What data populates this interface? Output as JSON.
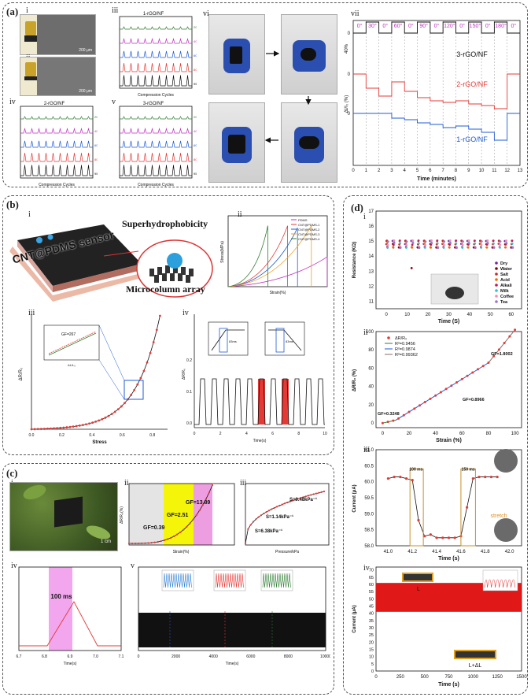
{
  "panels": {
    "a": {
      "label": "(a)",
      "subs": [
        "i",
        "ii",
        "iii",
        "iv",
        "v",
        "vi",
        "vii"
      ],
      "sem_scale": "200 μm",
      "iii_title": "1-rGO/NF",
      "iv_title": "2-rGO/NF",
      "v_title": "3-rGO/NF",
      "xlabel_cycles": "Compression Cycles",
      "legend_pct": [
        "20%",
        "40%",
        "60%",
        "80%",
        "95%"
      ],
      "vii_angles": [
        "0°",
        "30°",
        "0°",
        "60°",
        "0°",
        "90°",
        "0°",
        "120°",
        "0°",
        "150°",
        "0°",
        "180°",
        "0°"
      ],
      "vii_series": [
        "3-rGO/NF",
        "2-rGO/NF",
        "1-rGO/NF"
      ],
      "vii_xlabel": "Time (minutes)",
      "vii_ylabel": "ΔI/I₀ (%)",
      "vii_scale": "40%",
      "vii_xticks": [
        "0",
        "1",
        "2",
        "3",
        "4",
        "5",
        "6",
        "7",
        "8",
        "9",
        "10",
        "11",
        "12",
        "13"
      ]
    },
    "b": {
      "label": "(b)",
      "subs": [
        "i",
        "ii",
        "iii",
        "iv"
      ],
      "banner": "CNT@PDMS sensor",
      "t1": "Superhydrophobicity",
      "t2": "Microcolumn array",
      "ii_legend": [
        "PDMS",
        "CNT@PDMS-1",
        "CNT@PDMS-2",
        "CNT@PDMS-3",
        "CNT@PDMS-4"
      ],
      "ii_xlabel": "Strain(%)",
      "ii_ylabel": "Stress(MPa)",
      "iii_xlabel": "Stress",
      "iii_ylabel": "ΔR/R₀",
      "iii_gf": "GF=267",
      "iii_inset_x": "ΔL/L₀",
      "iii_xticks": [
        "0.0",
        "0.2",
        "0.4",
        "0.6",
        "0.8"
      ],
      "iv_xlabel": "Time(s)",
      "iv_ylabel": "ΔR/R₀",
      "iv_yticks": [
        "0.0",
        "0.1",
        "0.2"
      ],
      "iv_xticks": [
        "0",
        "2",
        "4",
        "6",
        "8",
        "10"
      ],
      "iv_ms": "83ms"
    },
    "c": {
      "label": "(c)",
      "subs": [
        "i",
        "ii",
        "iii",
        "iv",
        "v"
      ],
      "scale": "1 cm",
      "ii_gf": [
        "GF=0.39",
        "GF=2.51",
        "GF=13.89"
      ],
      "ii_xlabel": "Strain(%)",
      "ii_ylabel": "ΔR/R₀(%)",
      "iii_s": [
        "S=0.48kPa⁻¹",
        "S=1.14kPa⁻¹",
        "S=6.38kPa⁻¹"
      ],
      "iii_xlabel": "Pressure/kPa",
      "iv_ms": "100 ms",
      "iv_xlabel": "Time(s)",
      "iv_xticks": [
        "6.7",
        "6.8",
        "6.9",
        "7.0",
        "7.1"
      ],
      "v_xlabel": "Time(s)",
      "v_xticks": [
        "0",
        "2000",
        "4000",
        "6000",
        "8000",
        "10000"
      ]
    },
    "d": {
      "label": "(d)",
      "subs": [
        "i",
        "ii",
        "iii",
        "iv"
      ],
      "i_ylabel": "Resistance (KΩ)",
      "i_xlabel": "Time (S)",
      "i_legend": [
        "Dry",
        "Water",
        "Salt",
        "Acid",
        "Alkali",
        "Milk",
        "Coffee",
        "Tea"
      ],
      "i_xticks": [
        "0",
        "10",
        "20",
        "30",
        "40",
        "50",
        "60"
      ],
      "i_yticks": [
        "11",
        "12",
        "13",
        "14",
        "15",
        "16",
        "17"
      ],
      "ii_legend": [
        "ΔR/R₀",
        "R²=0.9456",
        "R²=0.9874",
        "R²=0.99362"
      ],
      "ii_gf": [
        "GF=0.3248",
        "GF=0.8966",
        "GF=1.8002"
      ],
      "ii_xlabel": "Strain (%)",
      "ii_ylabel": "ΔR/R₀ (%)",
      "ii_xticks": [
        "0",
        "20",
        "40",
        "60",
        "80",
        "100"
      ],
      "ii_yticks": [
        "0",
        "20",
        "40",
        "60",
        "80",
        "100"
      ],
      "iii_ylabel": "Current (μA)",
      "iii_xlabel": "Time (s)",
      "iii_ms": [
        "100 ms",
        "150 ms"
      ],
      "iii_stretch": "stretch",
      "iii_yticks": [
        "58.0",
        "58.5",
        "59.0",
        "59.5",
        "60.0",
        "60.5",
        "61.0"
      ],
      "iii_xticks": [
        "41.0",
        "41.2",
        "41.4",
        "41.6",
        "41.8",
        "42.0"
      ],
      "iv_ylabel": "Current (μA)",
      "iv_xlabel": "Time (s)",
      "iv_l": "L",
      "iv_l2": "L+ΔL",
      "iv_yticks": [
        "0",
        "5",
        "10",
        "15",
        "20",
        "25",
        "30",
        "35",
        "40",
        "45",
        "50",
        "55",
        "60",
        "65",
        "70"
      ],
      "iv_xticks": [
        "0",
        "250",
        "500",
        "750",
        "1000",
        "1250",
        "1500"
      ]
    }
  },
  "colors": {
    "red": "#e53935",
    "blue": "#1e5bd6",
    "green": "#2e7d32",
    "magenta": "#c030c0",
    "orange": "#f0a020",
    "black": "#111"
  }
}
